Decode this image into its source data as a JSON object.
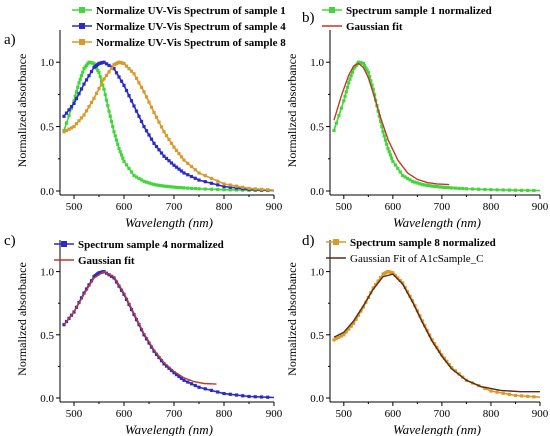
{
  "chart_data": [
    {
      "id": "a",
      "panel_label": "a)",
      "type": "line",
      "xlabel": "Wavelength (nm)",
      "ylabel": "Normalized absorbance",
      "xlim": [
        480,
        900
      ],
      "ylim": [
        0,
        1.25
      ],
      "xticks": [
        "500",
        "600",
        "700",
        "800",
        "900"
      ],
      "yticks": [
        "0.0",
        "0.5",
        "1.0"
      ],
      "legend_position": "top",
      "series": [
        {
          "name": "Normalize UV-Vis Spectrum of sample 1",
          "color": "#43d63a",
          "marker": "square",
          "x": [
            480,
            500,
            510,
            520,
            530,
            540,
            550,
            560,
            570,
            580,
            590,
            600,
            620,
            640,
            660,
            680,
            700,
            720,
            750,
            800,
            850,
            900
          ],
          "y": [
            0.47,
            0.7,
            0.84,
            0.95,
            1.0,
            0.99,
            0.92,
            0.79,
            0.62,
            0.46,
            0.33,
            0.23,
            0.12,
            0.075,
            0.05,
            0.038,
            0.03,
            0.024,
            0.017,
            0.01,
            0.006,
            0.003
          ]
        },
        {
          "name": "Normalize UV-Vis Spectrum of sample 4",
          "color": "#2b2bc8",
          "marker": "square",
          "x": [
            480,
            500,
            520,
            540,
            550,
            560,
            580,
            600,
            620,
            640,
            660,
            680,
            700,
            720,
            750,
            800,
            850,
            900
          ],
          "y": [
            0.58,
            0.68,
            0.83,
            0.96,
            0.99,
            1.0,
            0.95,
            0.82,
            0.66,
            0.5,
            0.37,
            0.27,
            0.2,
            0.14,
            0.085,
            0.035,
            0.012,
            0.004
          ]
        },
        {
          "name": "Normalize UV-Vis Spectrum of sample 8",
          "color": "#d89a2a",
          "marker": "square",
          "x": [
            480,
            500,
            520,
            540,
            560,
            580,
            590,
            600,
            620,
            640,
            660,
            680,
            700,
            720,
            750,
            800,
            850,
            900
          ],
          "y": [
            0.46,
            0.5,
            0.59,
            0.72,
            0.87,
            0.98,
            1.0,
            0.99,
            0.91,
            0.77,
            0.61,
            0.46,
            0.34,
            0.24,
            0.14,
            0.055,
            0.02,
            0.006
          ]
        }
      ]
    },
    {
      "id": "b",
      "panel_label": "b)",
      "type": "line",
      "xlabel": "Wavelength (nm)",
      "ylabel": "Normalized absorbance",
      "xlim": [
        480,
        900
      ],
      "ylim": [
        0,
        1.25
      ],
      "xticks": [
        "500",
        "600",
        "700",
        "800",
        "900"
      ],
      "yticks": [
        "0.0",
        "0.5",
        "1.0"
      ],
      "legend_position": "top",
      "series": [
        {
          "name": "Spectrum sample 1 normalized",
          "color": "#43d63a",
          "marker": "square",
          "x": [
            480,
            500,
            510,
            520,
            530,
            540,
            550,
            560,
            570,
            580,
            590,
            600,
            620,
            640,
            660,
            680,
            700,
            720,
            750,
            800,
            850,
            900
          ],
          "y": [
            0.47,
            0.7,
            0.84,
            0.95,
            1.0,
            0.99,
            0.92,
            0.79,
            0.62,
            0.46,
            0.33,
            0.23,
            0.12,
            0.075,
            0.05,
            0.038,
            0.03,
            0.024,
            0.017,
            0.01,
            0.006,
            0.003
          ]
        },
        {
          "name": "Gaussian fit",
          "color": "#c0392b",
          "marker": "none",
          "x": [
            480,
            495,
            510,
            520,
            530,
            540,
            550,
            560,
            575,
            590,
            610,
            630,
            650,
            670,
            690,
            715
          ],
          "y": [
            0.55,
            0.74,
            0.9,
            0.97,
            0.99,
            0.96,
            0.88,
            0.76,
            0.57,
            0.4,
            0.24,
            0.14,
            0.09,
            0.065,
            0.055,
            0.05
          ]
        }
      ]
    },
    {
      "id": "c",
      "panel_label": "c)",
      "type": "line",
      "xlabel": "Wavelength (nm)",
      "ylabel": "Normalized absorbance",
      "xlim": [
        480,
        900
      ],
      "ylim": [
        0,
        1.25
      ],
      "xticks": [
        "500",
        "600",
        "700",
        "800",
        "900"
      ],
      "yticks": [
        "0.0",
        "0.5",
        "1.0"
      ],
      "legend_position": "top",
      "series": [
        {
          "name": "Spectrum sample 4 normalized",
          "color": "#2b2bc8",
          "marker": "square",
          "x": [
            480,
            500,
            520,
            540,
            550,
            560,
            580,
            600,
            620,
            640,
            660,
            680,
            700,
            720,
            750,
            800,
            850,
            900
          ],
          "y": [
            0.58,
            0.68,
            0.83,
            0.96,
            0.99,
            1.0,
            0.95,
            0.82,
            0.66,
            0.5,
            0.37,
            0.27,
            0.2,
            0.14,
            0.085,
            0.035,
            0.012,
            0.004
          ]
        },
        {
          "name": "Gaussian fit",
          "color": "#c0392b",
          "marker": "none",
          "x": [
            480,
            500,
            520,
            540,
            560,
            580,
            600,
            620,
            640,
            660,
            680,
            700,
            720,
            740,
            760,
            785
          ],
          "y": [
            0.58,
            0.68,
            0.82,
            0.95,
            1.0,
            0.96,
            0.83,
            0.67,
            0.51,
            0.38,
            0.28,
            0.21,
            0.16,
            0.13,
            0.115,
            0.11
          ]
        }
      ]
    },
    {
      "id": "d",
      "panel_label": "d)",
      "type": "line",
      "xlabel": "Wavelength (nm)",
      "ylabel": "Normalized absorbance",
      "xlim": [
        480,
        900
      ],
      "ylim": [
        0,
        1.25
      ],
      "xticks": [
        "500",
        "600",
        "700",
        "800",
        "900"
      ],
      "yticks": [
        "0.0",
        "0.5",
        "1.0"
      ],
      "legend_position": "top",
      "series": [
        {
          "name": "Spectrum sample 8 normalized",
          "color": "#d89a2a",
          "marker": "square",
          "x": [
            480,
            500,
            520,
            540,
            560,
            580,
            590,
            600,
            620,
            640,
            660,
            680,
            700,
            720,
            750,
            800,
            850,
            900
          ],
          "y": [
            0.46,
            0.5,
            0.59,
            0.72,
            0.87,
            0.98,
            1.0,
            0.99,
            0.91,
            0.77,
            0.61,
            0.46,
            0.34,
            0.24,
            0.14,
            0.055,
            0.02,
            0.006
          ]
        },
        {
          "name": "Gaussian Fit of A1cSample_C",
          "color": "#5a2a1a",
          "marker": "none",
          "x": [
            480,
            500,
            520,
            540,
            560,
            580,
            600,
            620,
            640,
            660,
            680,
            700,
            720,
            750,
            780,
            820,
            860,
            900
          ],
          "y": [
            0.48,
            0.52,
            0.61,
            0.73,
            0.86,
            0.96,
            0.98,
            0.9,
            0.76,
            0.6,
            0.45,
            0.33,
            0.23,
            0.14,
            0.09,
            0.06,
            0.05,
            0.05
          ]
        }
      ]
    }
  ]
}
